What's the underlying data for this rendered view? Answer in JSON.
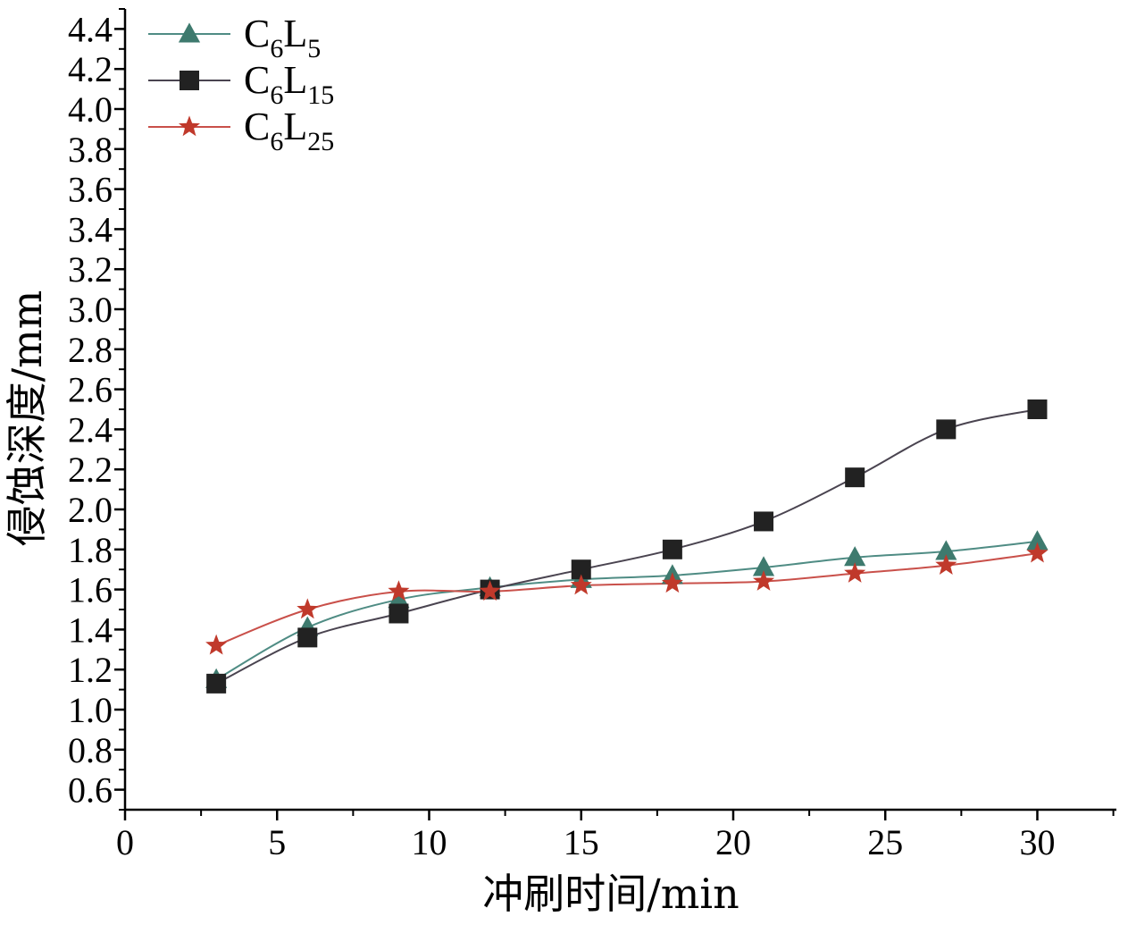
{
  "chart_data": {
    "type": "line",
    "xlabel": "冲刷时间/min",
    "ylabel": "侵蚀深度/mm",
    "xlim": [
      0,
      32.6
    ],
    "ylim": [
      0.5,
      4.5
    ],
    "x_ticks": [
      "0",
      "5",
      "10",
      "15",
      "20",
      "25",
      "30"
    ],
    "y_ticks": [
      "0.6",
      "0.8",
      "1.0",
      "1.2",
      "1.4",
      "1.6",
      "1.8",
      "2.0",
      "2.2",
      "2.4",
      "2.6",
      "2.8",
      "3.0",
      "3.2",
      "3.4",
      "3.6",
      "3.8",
      "4.0",
      "4.2",
      "4.4"
    ],
    "x": [
      3,
      6,
      9,
      12,
      15,
      18,
      21,
      24,
      27,
      30
    ],
    "series": [
      {
        "name": "C6L5",
        "name_main": "C",
        "name_sub1": "6",
        "name_mid": "L",
        "name_sub2": "5",
        "marker": "triangle",
        "line_color": "#4f8c84",
        "marker_color": "#3e7a6e",
        "values": [
          1.15,
          1.41,
          1.55,
          1.61,
          1.65,
          1.67,
          1.71,
          1.76,
          1.79,
          1.84
        ]
      },
      {
        "name": "C6L15",
        "name_main": "C",
        "name_sub1": "6",
        "name_mid": "L",
        "name_sub2": "15",
        "marker": "square",
        "line_color": "#4a4450",
        "marker_color": "#222222",
        "values": [
          1.13,
          1.36,
          1.48,
          1.6,
          1.7,
          1.8,
          1.94,
          2.16,
          2.4,
          2.5
        ]
      },
      {
        "name": "C6L25",
        "name_main": "C",
        "name_sub1": "6",
        "name_mid": "L",
        "name_sub2": "25",
        "marker": "star",
        "line_color": "#c9504a",
        "marker_color": "#c0392b",
        "values": [
          1.32,
          1.5,
          1.59,
          1.59,
          1.62,
          1.63,
          1.64,
          1.68,
          1.72,
          1.78
        ]
      }
    ],
    "legend_position": "top-left",
    "grid": false
  }
}
